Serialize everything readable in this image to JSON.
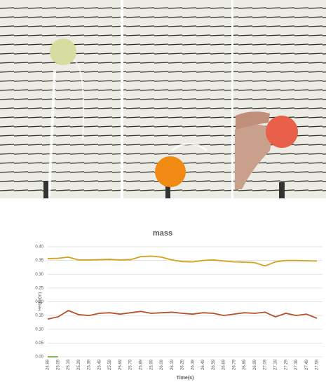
{
  "chart_data": {
    "type": "line",
    "title": "mass",
    "x_label": "Time(s)",
    "y_label": "Height(m)",
    "categories": [
      "24.99",
      "25.09",
      "25.19",
      "25.29",
      "25.39",
      "25.49",
      "25.59",
      "25.69",
      "25.79",
      "25.89",
      "25.99",
      "26.09",
      "26.19",
      "26.29",
      "26.39",
      "26.49",
      "26.59",
      "26.69",
      "26.79",
      "26.89",
      "26.99",
      "27.09",
      "27.19",
      "27.29",
      "27.39",
      "27.49",
      "27.59"
    ],
    "series": [
      {
        "color": "#d4a017",
        "values": [
          0.357,
          0.358,
          0.362,
          0.352,
          0.352,
          0.353,
          0.354,
          0.352,
          0.353,
          0.364,
          0.366,
          0.362,
          0.352,
          0.346,
          0.345,
          0.35,
          0.352,
          0.348,
          0.345,
          0.344,
          0.342,
          0.33,
          0.345,
          0.35,
          0.35,
          0.349,
          0.348
        ]
      },
      {
        "color": "#b5512b",
        "values": [
          0.137,
          0.145,
          0.168,
          0.153,
          0.15,
          0.158,
          0.16,
          0.155,
          0.16,
          0.165,
          0.158,
          0.16,
          0.162,
          0.158,
          0.155,
          0.16,
          0.158,
          0.15,
          0.155,
          0.16,
          0.158,
          0.162,
          0.145,
          0.158,
          0.15,
          0.155,
          0.14
        ]
      },
      {
        "color": "#70ad47",
        "values": [
          0,
          0,
          null,
          null,
          null,
          null,
          null,
          null,
          null,
          null,
          null,
          null,
          null,
          null,
          null,
          null,
          null,
          null,
          null,
          null,
          null,
          null,
          null,
          null,
          null,
          null,
          null
        ]
      }
    ],
    "ylim": [
      0,
      0.4
    ],
    "yticks": [
      {
        "value": 0,
        "label": "0.00"
      },
      0.05,
      {
        "value": 0.1,
        "label": "0.10"
      },
      0.15,
      {
        "value": 0.2,
        "label": "0.20"
      },
      0.25,
      {
        "value": 0.3,
        "label": "0.30"
      },
      0.35,
      {
        "value": 0.4,
        "label": "0.40"
      }
    ],
    "grid": true
  }
}
